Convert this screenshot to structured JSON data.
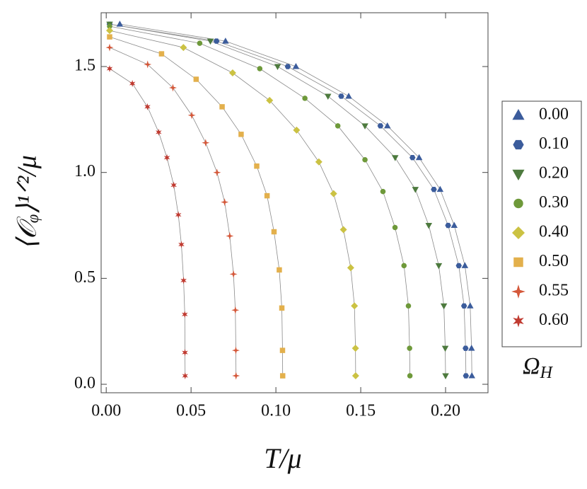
{
  "chart_data": {
    "type": "line",
    "xlabel": "T/μ",
    "ylabel": "⟨𝒪ᵩ⟩¹ᐟ²/μ",
    "legend_title": {
      "symbol": "Ω",
      "subscript": "H"
    },
    "xlim": [
      -0.003,
      0.225
    ],
    "ylim": [
      -0.04,
      1.754
    ],
    "xticks": [
      {
        "value": 0,
        "label": "0.00"
      },
      {
        "value": 0.05,
        "label": "0.05"
      },
      {
        "value": 0.1,
        "label": "0.10"
      },
      {
        "value": 0.15,
        "label": "0.15"
      },
      {
        "value": 0.2,
        "label": "0.20"
      }
    ],
    "yticks": [
      {
        "value": 0,
        "label": "0.0"
      },
      {
        "value": 0.5,
        "label": "0.5"
      },
      {
        "value": 1,
        "label": "1.0"
      },
      {
        "value": 1.5,
        "label": "1.5"
      }
    ],
    "line_color": "#8a8a8a",
    "series": [
      {
        "name": "0.00",
        "color": "#3b5c9c",
        "marker": "triangle-up",
        "x": [
          0.008,
          0.0703,
          0.1118,
          0.1429,
          0.1657,
          0.1844,
          0.1968,
          0.2051,
          0.2114,
          0.2145,
          0.2153,
          0.2155
        ],
        "values": [
          1.7,
          1.62,
          1.5,
          1.36,
          1.22,
          1.07,
          0.92,
          0.75,
          0.56,
          0.37,
          0.17,
          0.04
        ]
      },
      {
        "name": "0.10",
        "color": "#3b5c9c",
        "marker": "hexagon",
        "x": [
          0.002,
          0.065,
          0.107,
          0.1385,
          0.1616,
          0.1805,
          0.1931,
          0.2015,
          0.2078,
          0.2109,
          0.2118,
          0.212
        ],
        "values": [
          1.7,
          1.62,
          1.5,
          1.36,
          1.22,
          1.07,
          0.92,
          0.75,
          0.56,
          0.37,
          0.17,
          0.04
        ]
      },
      {
        "name": "0.20",
        "color": "#4d7a3e",
        "marker": "triangle-down",
        "x": [
          0.002,
          0.0614,
          0.101,
          0.1307,
          0.1525,
          0.1703,
          0.1822,
          0.1901,
          0.196,
          0.199,
          0.1998,
          0.2
        ],
        "values": [
          1.7,
          1.62,
          1.5,
          1.36,
          1.22,
          1.07,
          0.92,
          0.75,
          0.56,
          0.37,
          0.17,
          0.04
        ]
      },
      {
        "name": "0.30",
        "color": "#6e993a",
        "marker": "circle",
        "x": [
          0.002,
          0.0551,
          0.0905,
          0.1171,
          0.1365,
          0.1525,
          0.1631,
          0.1702,
          0.1755,
          0.1781,
          0.1788,
          0.179
        ],
        "values": [
          1.69,
          1.61,
          1.49,
          1.35,
          1.22,
          1.06,
          0.91,
          0.74,
          0.56,
          0.37,
          0.17,
          0.04
        ]
      },
      {
        "name": "0.40",
        "color": "#cbc243",
        "marker": "diamond",
        "x": [
          0.002,
          0.0455,
          0.0745,
          0.0963,
          0.1122,
          0.1253,
          0.134,
          0.1398,
          0.1441,
          0.1463,
          0.1469,
          0.147
        ],
        "values": [
          1.67,
          1.59,
          1.47,
          1.34,
          1.2,
          1.05,
          0.9,
          0.73,
          0.55,
          0.37,
          0.17,
          0.04
        ]
      },
      {
        "name": "0.50",
        "color": "#e3b04c",
        "marker": "square",
        "x": [
          0.002,
          0.0326,
          0.053,
          0.0683,
          0.0795,
          0.0887,
          0.0948,
          0.0989,
          0.102,
          0.1035,
          0.1039,
          0.104
        ],
        "values": [
          1.64,
          1.56,
          1.44,
          1.31,
          1.18,
          1.03,
          0.89,
          0.72,
          0.54,
          0.36,
          0.16,
          0.04
        ]
      },
      {
        "name": "0.55",
        "color": "#d4583a",
        "marker": "star4",
        "x": [
          0.002,
          0.0244,
          0.0393,
          0.0504,
          0.0586,
          0.0653,
          0.0698,
          0.0728,
          0.075,
          0.0761,
          0.0764,
          0.0765
        ],
        "values": [
          1.59,
          1.51,
          1.4,
          1.27,
          1.14,
          1.0,
          0.86,
          0.7,
          0.52,
          0.35,
          0.16,
          0.04
        ]
      },
      {
        "name": "0.60",
        "color": "#c03a30",
        "marker": "star6",
        "x": [
          0.002,
          0.0154,
          0.0243,
          0.0309,
          0.0358,
          0.0398,
          0.0425,
          0.0443,
          0.0456,
          0.0463,
          0.0464,
          0.0465
        ],
        "values": [
          1.49,
          1.42,
          1.31,
          1.19,
          1.07,
          0.94,
          0.8,
          0.66,
          0.49,
          0.33,
          0.15,
          0.04
        ]
      }
    ]
  }
}
